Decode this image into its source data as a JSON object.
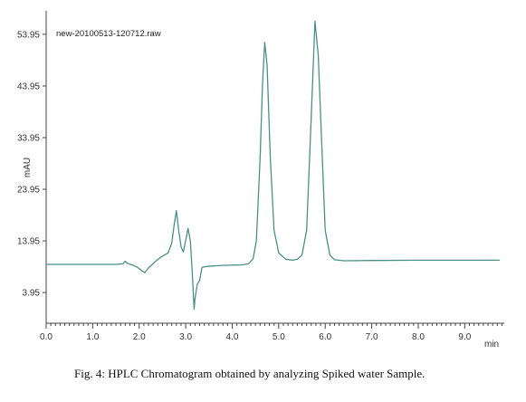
{
  "caption": "Fig. 4: HPLC Chromatogram obtained by analyzing Spiked water Sample.",
  "chart_data": {
    "type": "line",
    "run_name": "new-20100513-120712.raw",
    "xlabel": "min",
    "ylabel": "mAU",
    "xlim": [
      0.0,
      9.85
    ],
    "ylim": [
      -2.0,
      58.5
    ],
    "x_ticks": [
      "0.0",
      "1.0",
      "2.0",
      "3.0",
      "4.0",
      "5.0",
      "6.0",
      "7.0",
      "8.0",
      "9.0"
    ],
    "y_ticks": [
      "3.95",
      "13.95",
      "23.95",
      "33.95",
      "43.95",
      "53.95"
    ],
    "line_color": "#4a9088",
    "grid": false,
    "series": [
      {
        "values": [
          [
            0.0,
            9.4
          ],
          [
            0.5,
            9.4
          ],
          [
            1.0,
            9.4
          ],
          [
            1.5,
            9.4
          ],
          [
            1.65,
            9.5
          ],
          [
            1.7,
            10.0
          ],
          [
            1.75,
            9.6
          ],
          [
            1.85,
            9.3
          ],
          [
            1.95,
            8.9
          ],
          [
            2.05,
            8.2
          ],
          [
            2.12,
            7.8
          ],
          [
            2.2,
            8.7
          ],
          [
            2.35,
            10.0
          ],
          [
            2.5,
            11.0
          ],
          [
            2.62,
            11.6
          ],
          [
            2.7,
            13.5
          ],
          [
            2.75,
            17.0
          ],
          [
            2.8,
            19.8
          ],
          [
            2.85,
            16.0
          ],
          [
            2.9,
            12.8
          ],
          [
            2.95,
            11.8
          ],
          [
            3.0,
            14.0
          ],
          [
            3.05,
            16.4
          ],
          [
            3.1,
            14.0
          ],
          [
            3.14,
            8.0
          ],
          [
            3.18,
            0.7
          ],
          [
            3.2,
            2.8
          ],
          [
            3.25,
            5.6
          ],
          [
            3.3,
            6.3
          ],
          [
            3.35,
            8.8
          ],
          [
            3.45,
            9.0
          ],
          [
            3.6,
            9.1
          ],
          [
            3.8,
            9.2
          ],
          [
            4.0,
            9.25
          ],
          [
            4.2,
            9.3
          ],
          [
            4.35,
            9.5
          ],
          [
            4.45,
            10.5
          ],
          [
            4.52,
            14.0
          ],
          [
            4.6,
            30.0
          ],
          [
            4.65,
            44.0
          ],
          [
            4.7,
            52.4
          ],
          [
            4.75,
            48.0
          ],
          [
            4.82,
            30.0
          ],
          [
            4.9,
            16.0
          ],
          [
            5.0,
            11.6
          ],
          [
            5.15,
            10.4
          ],
          [
            5.3,
            10.2
          ],
          [
            5.4,
            10.4
          ],
          [
            5.5,
            11.2
          ],
          [
            5.6,
            16.0
          ],
          [
            5.7,
            38.0
          ],
          [
            5.78,
            56.5
          ],
          [
            5.85,
            50.0
          ],
          [
            5.92,
            34.0
          ],
          [
            6.0,
            16.0
          ],
          [
            6.1,
            11.2
          ],
          [
            6.2,
            10.3
          ],
          [
            6.4,
            10.1
          ],
          [
            7.0,
            10.15
          ],
          [
            8.0,
            10.2
          ],
          [
            9.0,
            10.2
          ],
          [
            9.75,
            10.2
          ]
        ]
      }
    ]
  }
}
